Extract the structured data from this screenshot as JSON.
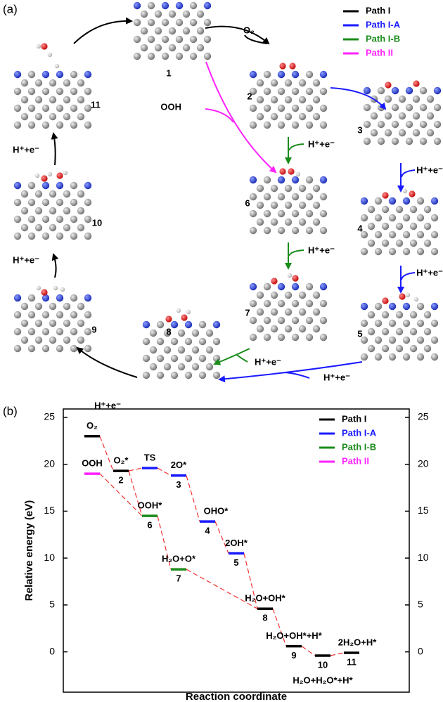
{
  "panel_labels": [
    "(a)",
    "(b)"
  ],
  "diagram": {
    "legend": [
      {
        "name": "Path I",
        "color": "#000000"
      },
      {
        "name": "Path I-A",
        "color": "#1a1aff"
      },
      {
        "name": "Path I-B",
        "color": "#1a8c1a"
      },
      {
        "name": "Path II",
        "color": "#ff22ff"
      }
    ],
    "structures": [
      "1",
      "2",
      "3",
      "4",
      "5",
      "6",
      "7",
      "8",
      "9",
      "10",
      "11"
    ],
    "reagents": {
      "o2": "O₂",
      "ooh": "OOH",
      "proton_electron": "H⁺+e⁻"
    }
  },
  "chart_data": {
    "type": "energy-diagram",
    "xlabel": "Reaction coordinate",
    "ylabel": "Relative energy (eV)",
    "categories": [
      null,
      null,
      null,
      null,
      null,
      null,
      null,
      null,
      null,
      null
    ],
    "ylim": [
      -4.3,
      25.9
    ],
    "yticks": [
      0,
      5,
      10,
      15,
      20,
      25
    ],
    "y2lim": [
      -4.3,
      25.9
    ],
    "y2ticks": [
      0,
      5,
      10,
      15,
      20,
      25
    ],
    "legend": "upper right",
    "series": [
      {
        "name": "Path I",
        "color": "#000000",
        "values": [
          23.0,
          19.3,
          null,
          null,
          null,
          null,
          4.6,
          0.6,
          -0.4,
          -0.1
        ],
        "species": [
          "O₂",
          "O₂*",
          null,
          null,
          null,
          null,
          "H₂O+OH*",
          "H₂O+OH*+H*",
          "H₂O+H₂O*+H*",
          "2H₂O+H*"
        ],
        "steps": [
          null,
          "2",
          null,
          null,
          null,
          null,
          "8",
          "9",
          "10",
          "11"
        ]
      },
      {
        "name": "Path I-A",
        "color": "#1a1aff",
        "values": [
          null,
          null,
          19.6,
          18.8,
          13.9,
          10.5,
          null,
          null,
          null,
          null
        ],
        "species": [
          null,
          null,
          "TS",
          "2O*",
          "OHO*",
          "2OH*",
          null,
          null,
          null,
          null
        ],
        "steps": [
          null,
          null,
          null,
          "3",
          "4",
          "5",
          null,
          null,
          null,
          null
        ]
      },
      {
        "name": "Path I-B",
        "color": "#1a8c1a",
        "values": [
          null,
          null,
          14.5,
          8.8,
          null,
          null,
          null,
          null,
          null,
          null
        ],
        "species": [
          null,
          null,
          "OOH*",
          "H₂O+O*",
          null,
          null,
          null,
          null,
          null,
          null
        ],
        "steps": [
          null,
          null,
          "6",
          "7",
          null,
          null,
          null,
          null,
          null,
          null
        ]
      },
      {
        "name": "Path II",
        "color": "#ff22ff",
        "values": [
          19.0,
          null,
          null,
          null,
          null,
          null,
          null,
          null,
          null,
          null
        ],
        "species": [
          "OOH",
          null,
          null,
          null,
          null,
          null,
          null,
          null,
          null,
          null
        ],
        "steps": [
          null,
          null,
          null,
          null,
          null,
          null,
          null,
          null,
          null,
          null
        ]
      }
    ]
  }
}
